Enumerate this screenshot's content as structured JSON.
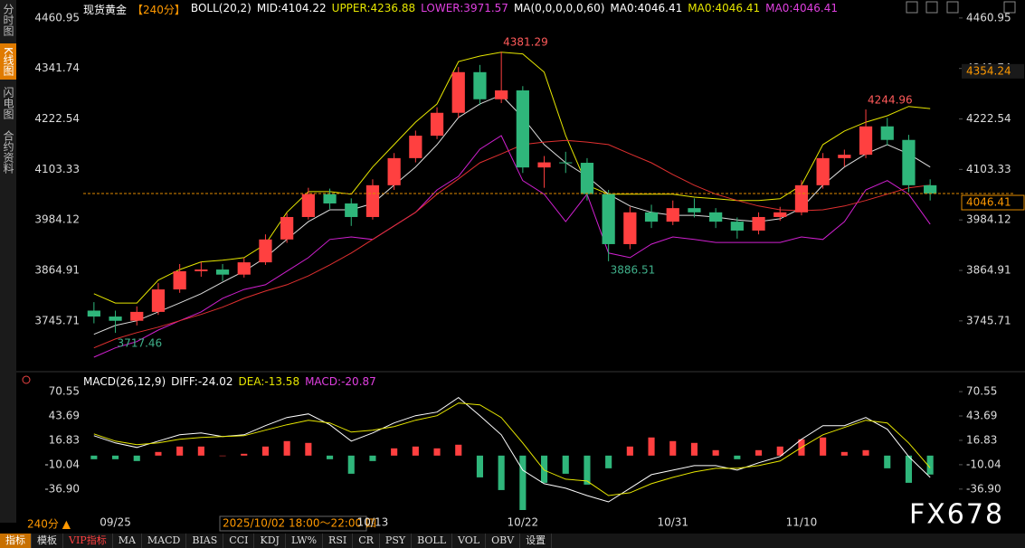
{
  "ui": {
    "sidebar": [
      "分时图",
      "K线图",
      "闪电图",
      "合约资料"
    ],
    "period": "240分 ▲",
    "cursor_time": "2025/10/02 18:00～22:00 四",
    "watermark": "FX678",
    "toolbar": [
      "指标",
      "模板",
      "VIP指标",
      "MA",
      "MACD",
      "BIAS",
      "CCI",
      "KDJ",
      "LW%",
      "RSI",
      "CR",
      "PSY",
      "BOLL",
      "VOL",
      "OBV",
      "设置"
    ]
  },
  "chart_data": [
    {
      "type": "candlestick",
      "header": [
        {
          "text": "现货黄金",
          "color": "#ffffff"
        },
        {
          "text": "【240分】",
          "color": "#ff9900"
        },
        {
          "text": "BOLL(20,2)",
          "color": "#ffffff"
        },
        {
          "text": "MID:4104.22",
          "color": "#ffffff"
        },
        {
          "text": "UPPER:4236.88",
          "color": "#e6e600"
        },
        {
          "text": "LOWER:3971.57",
          "color": "#e040e0"
        },
        {
          "text": "MA(0,0,0,0,0,60)",
          "color": "#ffffff"
        },
        {
          "text": "MA0:4046.41",
          "color": "#ffffff"
        },
        {
          "text": "MA0:4046.41",
          "color": "#e6e600"
        },
        {
          "text": "MA0:4046.41",
          "color": "#e040e0"
        }
      ],
      "categories": [
        null,
        "09/25",
        null,
        null,
        null,
        null,
        null,
        null,
        null,
        null,
        null,
        null,
        null,
        "10/13",
        null,
        null,
        null,
        null,
        null,
        null,
        "10/22",
        null,
        null,
        null,
        null,
        null,
        null,
        "10/31",
        null,
        null,
        null,
        null,
        null,
        "11/10",
        null,
        null,
        null,
        null,
        null,
        null
      ],
      "open": [
        3770,
        3756,
        3746,
        3767,
        3820,
        3863,
        3867,
        3855,
        3884,
        3938,
        3991,
        4045,
        4023,
        3991,
        4066,
        4130,
        4183,
        4237,
        4333,
        4269,
        4290,
        4108,
        4120,
        4119,
        4045,
        3927,
        4002,
        3980,
        4012,
        4002,
        3980,
        3959,
        3991,
        4002,
        4066,
        4130,
        4138,
        4205,
        4173,
        4066
      ],
      "high": [
        3790,
        3770,
        3780,
        3835,
        3880,
        3885,
        3880,
        3895,
        3950,
        4000,
        4060,
        4058,
        4035,
        4080,
        4142,
        4195,
        4250,
        4345,
        4350,
        4381.29,
        4300,
        4135,
        4145,
        4130,
        4055,
        4015,
        4020,
        4030,
        4035,
        4012,
        3990,
        4002,
        4015,
        4078,
        4142,
        4150,
        4244.96,
        4225,
        4185,
        4080
      ],
      "low": [
        3740,
        3717.46,
        3735,
        3760,
        3812,
        3850,
        3840,
        3848,
        3878,
        3930,
        3985,
        4010,
        3970,
        3985,
        4055,
        4120,
        4175,
        4225,
        4255,
        4260,
        4095,
        4060,
        4095,
        4030,
        3886.51,
        3915,
        3965,
        3972,
        3990,
        3965,
        3940,
        3950,
        3982,
        3995,
        4058,
        4110,
        4130,
        4160,
        4050,
        4030
      ],
      "close": [
        3756,
        3746,
        3767,
        3820,
        3863,
        3867,
        3855,
        3884,
        3938,
        3991,
        4045,
        4023,
        3991,
        4066,
        4130,
        4183,
        4237,
        4333,
        4269,
        4290,
        4108,
        4120,
        4119,
        4045,
        3927,
        4002,
        3980,
        4012,
        4002,
        3980,
        3959,
        3991,
        4002,
        4066,
        4130,
        4138,
        4205,
        4173,
        4066,
        4046.41
      ],
      "up_color": "#ff4040",
      "down_color": "#2fb67b",
      "series": [
        {
          "color": "#e6e600",
          "values": [
            3810,
            3788,
            3788,
            3842,
            3867,
            3885,
            3889,
            3895,
            3927,
            4002,
            4051,
            4051,
            4045,
            4109,
            4162,
            4215,
            4258,
            4358,
            4371,
            4380,
            4376,
            4333,
            4183,
            4066,
            4045,
            4045,
            4045,
            4045,
            4038,
            4034,
            4030,
            4030,
            4034,
            4066,
            4162,
            4194,
            4215,
            4230,
            4252,
            4247
          ]
        },
        {
          "color": "#dddddd",
          "values": [
            3714,
            3735,
            3746,
            3767,
            3788,
            3810,
            3837,
            3863,
            3895,
            3938,
            3980,
            4008,
            4008,
            4023,
            4066,
            4109,
            4162,
            4226,
            4258,
            4279,
            4226,
            4162,
            4119,
            4087,
            4045,
            4017,
            4002,
            3995,
            3995,
            3991,
            3984,
            3980,
            3987,
            4012,
            4066,
            4109,
            4140,
            4162,
            4140,
            4109
          ]
        },
        {
          "color": "#d020d0",
          "values": [
            3660,
            3682,
            3697,
            3724,
            3746,
            3767,
            3799,
            3820,
            3831,
            3863,
            3895,
            3938,
            3944,
            3938,
            3970,
            4002,
            4055,
            4087,
            4151,
            4183,
            4077,
            4045,
            3980,
            4045,
            3906,
            3895,
            3927,
            3944,
            3938,
            3931,
            3931,
            3931,
            3931,
            3944,
            3938,
            3980,
            4055,
            4077,
            4045,
            3974
          ]
        },
        {
          "color": "#e03030",
          "values": [
            3682,
            3703,
            3718,
            3731,
            3746,
            3761,
            3778,
            3799,
            3816,
            3831,
            3852,
            3878,
            3906,
            3938,
            3970,
            4002,
            4045,
            4081,
            4119,
            4140,
            4162,
            4168,
            4172,
            4168,
            4162,
            4140,
            4119,
            4091,
            4066,
            4045,
            4030,
            4017,
            4008,
            4006,
            4008,
            4017,
            4030,
            4045,
            4060,
            4066
          ]
        }
      ],
      "crosshair_price": 4354.24,
      "ylim": [
        3628,
        4482
      ],
      "yticks": [
        3745.71,
        3864.91,
        3984.12,
        4103.33,
        4222.54,
        4341.74,
        4460.95
      ]
    },
    {
      "type": "macd",
      "header": [
        {
          "text": "MACD(26,12,9)",
          "color": "#ffffff"
        },
        {
          "text": "DIFF:-24.02",
          "color": "#ffffff"
        },
        {
          "text": "DEA:-13.58",
          "color": "#e6e600"
        },
        {
          "text": "MACD:-20.87",
          "color": "#e040e0"
        }
      ],
      "series": [
        {
          "color": "#ffffff",
          "values": [
            22,
            14,
            9,
            16,
            23,
            25,
            21,
            23,
            33,
            42,
            46,
            34,
            16,
            25,
            36,
            44,
            48,
            64,
            44,
            23,
            -16,
            -31,
            -36,
            -44,
            -51,
            -36,
            -21,
            -16,
            -11,
            -11,
            -16,
            -8,
            -1,
            18,
            33,
            33,
            42,
            29,
            -1,
            -24.02
          ]
        },
        {
          "color": "#e6e600",
          "values": [
            24,
            16,
            12,
            14,
            18,
            20,
            21,
            22,
            28,
            34,
            39,
            36,
            26,
            28,
            32,
            39,
            44,
            58,
            56,
            42,
            14,
            -16,
            -26,
            -28,
            -44,
            -41,
            -31,
            -24,
            -18,
            -14,
            -14,
            -11,
            -6,
            9,
            23,
            31,
            39,
            36,
            14,
            -13.58
          ]
        }
      ],
      "histogram": [
        -4,
        -4,
        -6,
        4,
        10,
        10,
        0,
        2,
        10,
        16,
        14,
        -4,
        -20,
        -6,
        8,
        10,
        8,
        12,
        -24,
        -38,
        -60,
        -30,
        -20,
        -32,
        -14,
        10,
        20,
        16,
        14,
        6,
        -4,
        6,
        10,
        18,
        20,
        4,
        6,
        -14,
        -30,
        -20.87
      ],
      "up_color": "#ff4040",
      "down_color": "#2fb67b",
      "ylim": [
        -61,
        78.6
      ],
      "yticks": [
        70.55,
        43.69,
        16.83,
        {
          "value": -10.04,
          "label": "-10.04"
        },
        {
          "value": -36.9,
          "label": "-36.90"
        }
      ]
    }
  ]
}
